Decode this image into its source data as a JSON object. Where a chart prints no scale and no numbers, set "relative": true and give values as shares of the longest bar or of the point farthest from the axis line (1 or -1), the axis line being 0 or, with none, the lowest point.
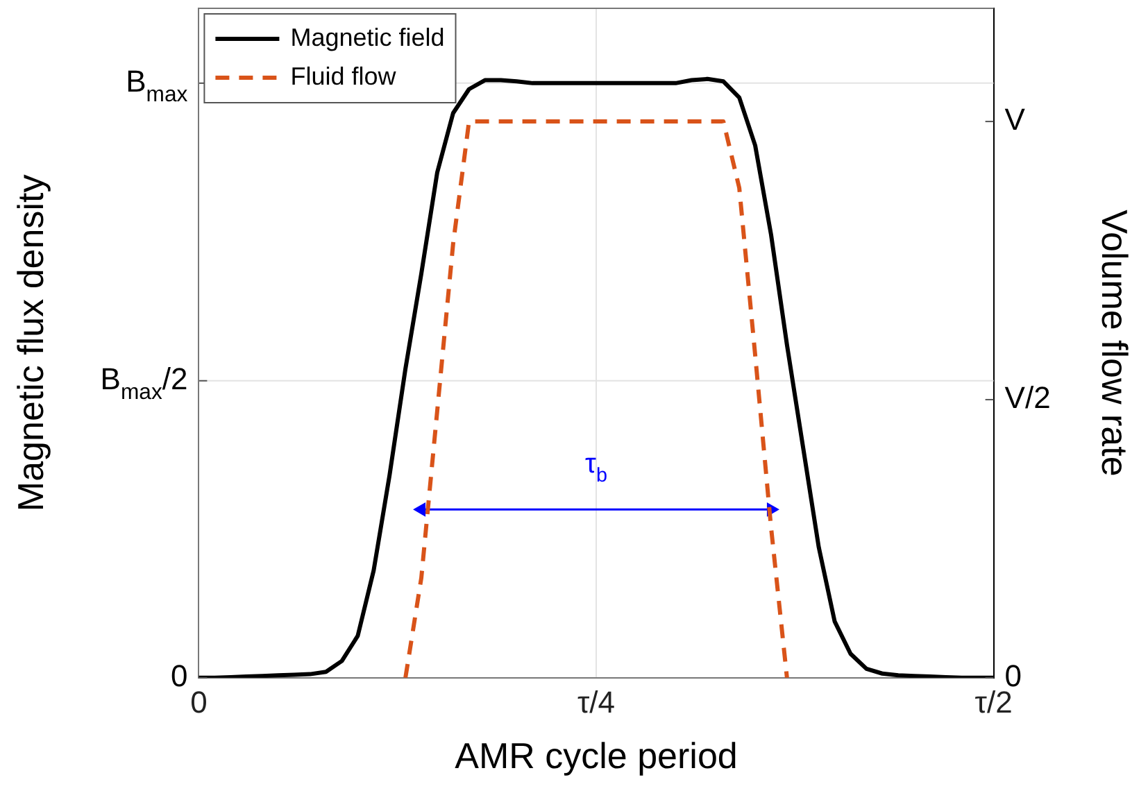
{
  "chart_data": {
    "type": "line",
    "xlabel": "AMR cycle period",
    "ylabel": "Magnetic flux density",
    "y2label": "Volume flow rate",
    "relative": true,
    "categories": [
      "0",
      null,
      null,
      null,
      null,
      null,
      null,
      null,
      null,
      null,
      null,
      null,
      null,
      null,
      null,
      null,
      null,
      null,
      null,
      null,
      null,
      null,
      null,
      null,
      null,
      "τ/4",
      null,
      null,
      null,
      null,
      null,
      null,
      null,
      null,
      null,
      null,
      null,
      null,
      null,
      null,
      null,
      null,
      null,
      null,
      null,
      null,
      null,
      null,
      null,
      null,
      "τ/2"
    ],
    "grid": "x",
    "legend": "top left",
    "marker": "none",
    "series": [
      {
        "name": "Magnetic field",
        "color": "#000000",
        "line_style": "solid",
        "values": [
          0,
          0,
          0.001,
          0.002,
          0.003,
          0.004,
          0.005,
          0.006,
          0.01,
          0.028,
          0.07,
          0.179,
          0.338,
          0.516,
          0.675,
          0.844,
          0.943,
          0.983,
          0.998,
          0.998,
          0.996,
          0.993,
          0.993,
          0.993,
          0.993,
          0.993,
          0.993,
          0.993,
          0.993,
          0.993,
          0.993,
          0.998,
          1.0,
          0.996,
          0.969,
          0.889,
          0.74,
          0.556,
          0.387,
          0.218,
          0.094,
          0.04,
          0.015,
          0.007,
          0.004,
          0.003,
          0.002,
          0.001,
          0,
          0,
          0
        ]
      },
      {
        "name": "Fluid flow",
        "color": "#d95319",
        "line_style": "dashed",
        "values": [
          null,
          null,
          null,
          null,
          null,
          null,
          null,
          null,
          null,
          null,
          null,
          null,
          null,
          0,
          0.167,
          0.446,
          0.725,
          0.929,
          0.929,
          0.929,
          0.929,
          0.929,
          0.929,
          0.929,
          0.929,
          0.929,
          0.929,
          0.929,
          0.929,
          0.929,
          0.929,
          0.929,
          0.929,
          0.929,
          0.818,
          0.539,
          0.251,
          0,
          null,
          null,
          null,
          null,
          null,
          null,
          null,
          null,
          null,
          null,
          null,
          null,
          null
        ]
      },
      {
        "color": "#0000ff",
        "line_style": "solid",
        "marker": "triangle",
        "values": [
          null,
          null,
          null,
          null,
          null,
          null,
          null,
          null,
          null,
          null,
          null,
          null,
          null,
          null,
          0.281,
          null,
          null,
          null,
          null,
          null,
          null,
          null,
          null,
          null,
          null,
          null,
          null,
          null,
          null,
          null,
          null,
          null,
          null,
          null,
          null,
          null,
          0.281,
          null,
          null,
          null,
          null,
          null,
          null,
          null,
          null,
          null,
          null,
          null,
          null,
          null,
          null
        ]
      }
    ],
    "ref_lines": [
      {
        "axis": "y",
        "value": 0,
        "label": "0"
      },
      {
        "axis": "y",
        "value": 0.496,
        "label": "B$_{max}$/2",
        "color": "#e3e3e3"
      },
      {
        "axis": "y",
        "value": 0.993,
        "label": "B$_{max}$",
        "color": "#e3e3e3"
      }
    ],
    "annotations": [
      "τ$_{b}$",
      "0",
      "V/2",
      "V"
    ]
  }
}
